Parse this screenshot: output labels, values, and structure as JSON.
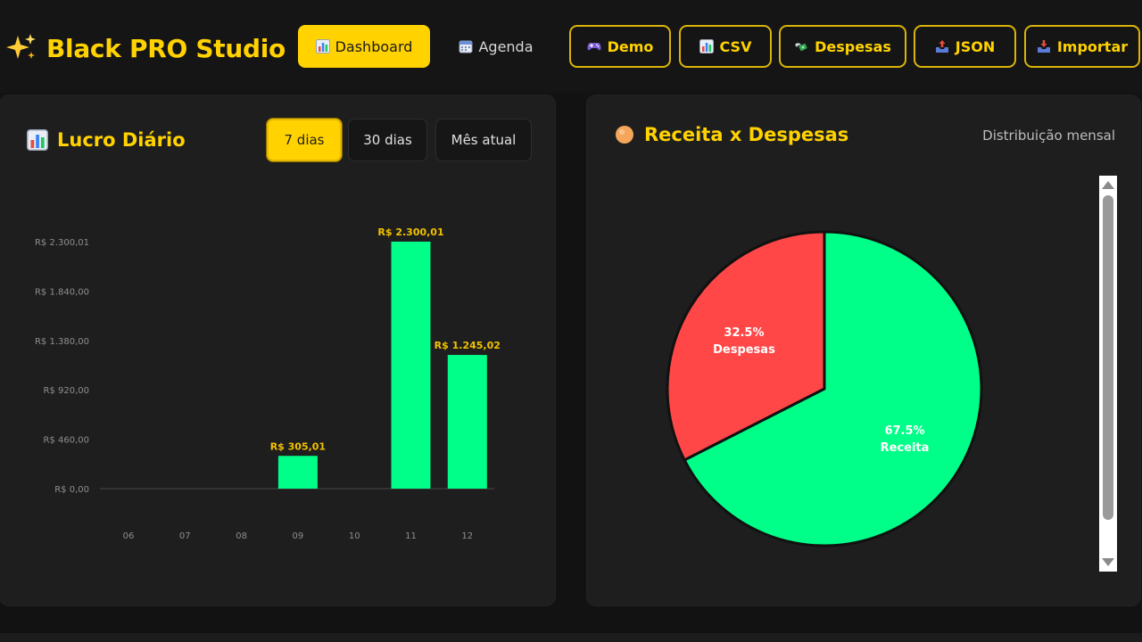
{
  "header": {
    "title": "Black PRO Studio",
    "icon": "sparkles-icon",
    "nav": [
      {
        "label": "Dashboard",
        "icon": "bar-chart-icon",
        "active": true
      },
      {
        "label": "Agenda",
        "icon": "calendar-icon",
        "active": false
      }
    ],
    "actions": [
      {
        "label": "Demo",
        "icon": "gamepad-icon"
      },
      {
        "label": "CSV",
        "icon": "bar-chart-icon"
      },
      {
        "label": "Despesas",
        "icon": "money-wings-icon"
      },
      {
        "label": "JSON",
        "icon": "outbox-tray-icon"
      },
      {
        "label": "Importar",
        "icon": "inbox-tray-icon"
      }
    ]
  },
  "profit_card": {
    "title": "Lucro Diário",
    "icon": "bar-chart-icon",
    "ranges": [
      {
        "label": "7 dias",
        "active": true
      },
      {
        "label": "30 dias",
        "active": false
      },
      {
        "label": "Mês atual",
        "active": false
      }
    ]
  },
  "pie_card": {
    "title": "Receita x Despesas",
    "icon": "orange-circle-icon",
    "subtitle": "Distribuição mensal"
  },
  "chart_data": [
    {
      "type": "bar",
      "categories": [
        "06",
        "07",
        "08",
        "09",
        "10",
        "11",
        "12"
      ],
      "values": [
        0,
        0,
        0,
        305.01,
        0,
        2300.01,
        1245.02
      ],
      "data_labels": [
        "",
        "",
        "",
        "R$ 305,01",
        "",
        "R$ 2.300,01",
        "R$ 1.245,02"
      ],
      "y_ticks": [
        0,
        460,
        920,
        1380,
        1840,
        2300.01
      ],
      "y_tick_labels": [
        "R$ 0,00",
        "R$ 460,00",
        "R$ 920,00",
        "R$ 1.380,00",
        "R$ 1.840,00",
        "R$ 2.300,01"
      ],
      "ylim": [
        0,
        2300.01
      ],
      "color": "#00ff88",
      "label_color": "#f2c200",
      "grid": false
    },
    {
      "type": "pie",
      "slices": [
        {
          "name": "Receita",
          "value": 67.5,
          "label": "67.5%",
          "color": "#00ff88"
        },
        {
          "name": "Despesas",
          "value": 32.5,
          "label": "32.5%",
          "color": "#ff4747"
        }
      ]
    }
  ]
}
